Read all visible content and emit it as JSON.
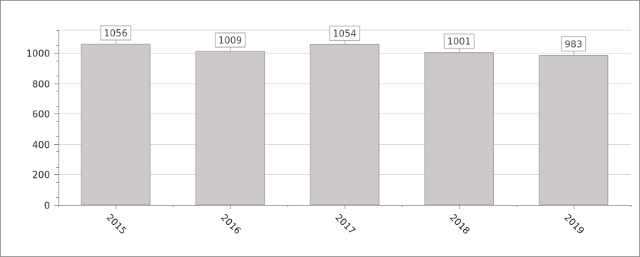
{
  "chart_data": {
    "type": "bar",
    "title": "",
    "xlabel": "",
    "ylabel": "",
    "categories": [
      "2015",
      "2016",
      "2017",
      "2018",
      "2019"
    ],
    "values": [
      1056,
      1009,
      1054,
      1001,
      983
    ],
    "data_labels": [
      "1056",
      "1009",
      "1054",
      "1001",
      "983"
    ],
    "ylim": [
      0,
      1150
    ],
    "yticks": [
      0,
      200,
      400,
      600,
      800,
      1000
    ],
    "ytick_labels": [
      "0",
      "200",
      "400",
      "600",
      "800",
      "1000"
    ],
    "grid": "horizontal",
    "legend": "none",
    "x_tick_rotation": "diagonal",
    "colors": {
      "bar_fill": "#cdc9c9",
      "bar_stroke": "#9a9696",
      "grid": "#d9d9d9",
      "axis": "#7f7f7f",
      "label_box_border": "#9a9a9a"
    }
  }
}
